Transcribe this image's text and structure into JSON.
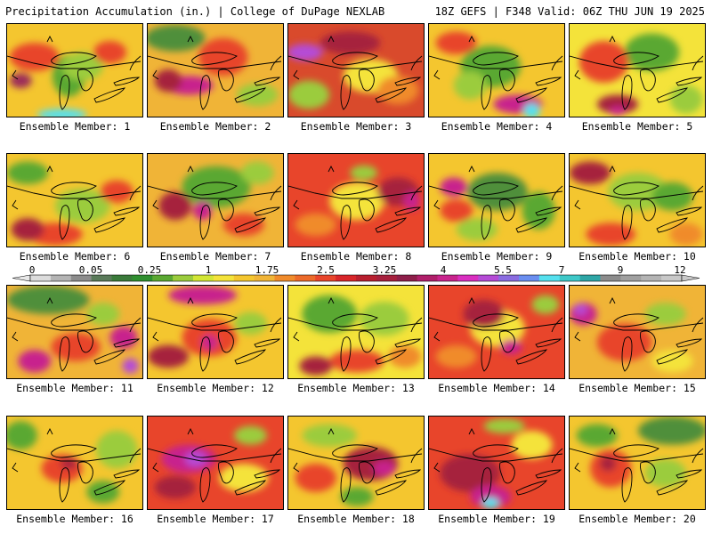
{
  "header": {
    "title": "Precipitation Accumulation (in.) | College of DuPage NEXLAB",
    "run_info": "18Z GEFS | F348 Valid: 06Z THU JUN 19 2025"
  },
  "label_prefix": "Ensemble Member: ",
  "members": [
    {
      "num": 1,
      "label": "Ensemble Member: 1",
      "base": "#f4c62f",
      "blobs": [
        [
          "#5aa832",
          0.45,
          0.55,
          0.12,
          0.22
        ],
        [
          "#9bcc3d",
          0.55,
          0.45,
          0.15,
          0.15
        ],
        [
          "#e8452b",
          0.2,
          0.35,
          0.18,
          0.15
        ],
        [
          "#e8452b",
          0.75,
          0.3,
          0.12,
          0.12
        ],
        [
          "#55e0ee",
          0.4,
          0.96,
          0.18,
          0.06
        ],
        [
          "#9b2a5a",
          0.1,
          0.6,
          0.08,
          0.08
        ]
      ]
    },
    {
      "num": 2,
      "label": "Ensemble Member: 2",
      "base": "#f0b437",
      "blobs": [
        [
          "#4f8f3a",
          0.2,
          0.15,
          0.22,
          0.14
        ],
        [
          "#c8248d",
          0.3,
          0.65,
          0.18,
          0.1
        ],
        [
          "#e8452b",
          0.55,
          0.35,
          0.18,
          0.2
        ],
        [
          "#9bcc3d",
          0.8,
          0.75,
          0.15,
          0.12
        ],
        [
          "#a6203d",
          0.15,
          0.6,
          0.1,
          0.12
        ]
      ]
    },
    {
      "num": 3,
      "label": "Ensemble Member: 3",
      "base": "#d94a2c",
      "blobs": [
        [
          "#b54bd6",
          0.12,
          0.3,
          0.13,
          0.09
        ],
        [
          "#f4e33a",
          0.6,
          0.55,
          0.2,
          0.18
        ],
        [
          "#9bcc3d",
          0.15,
          0.75,
          0.15,
          0.15
        ],
        [
          "#a6203d",
          0.45,
          0.2,
          0.22,
          0.12
        ],
        [
          "#f08b2b",
          0.8,
          0.7,
          0.15,
          0.15
        ]
      ]
    },
    {
      "num": 4,
      "label": "Ensemble Member: 4",
      "base": "#f4c62f",
      "blobs": [
        [
          "#5aa832",
          0.45,
          0.45,
          0.22,
          0.22
        ],
        [
          "#c8248d",
          0.65,
          0.85,
          0.18,
          0.1
        ],
        [
          "#55e0ee",
          0.75,
          0.92,
          0.06,
          0.08
        ],
        [
          "#e8452b",
          0.2,
          0.2,
          0.15,
          0.12
        ],
        [
          "#9bcc3d",
          0.3,
          0.65,
          0.12,
          0.15
        ]
      ]
    },
    {
      "num": 5,
      "label": "Ensemble Member: 5",
      "base": "#f4e33a",
      "blobs": [
        [
          "#5aa832",
          0.6,
          0.3,
          0.2,
          0.2
        ],
        [
          "#e8452b",
          0.25,
          0.4,
          0.18,
          0.22
        ],
        [
          "#9bcc3d",
          0.85,
          0.8,
          0.12,
          0.15
        ],
        [
          "#a6203d",
          0.35,
          0.85,
          0.15,
          0.1
        ],
        [
          "#c8248d",
          0.35,
          0.92,
          0.06,
          0.05
        ]
      ]
    },
    {
      "num": 6,
      "label": "Ensemble Member: 6",
      "base": "#f4c62f",
      "blobs": [
        [
          "#5aa832",
          0.15,
          0.2,
          0.15,
          0.12
        ],
        [
          "#9bcc3d",
          0.55,
          0.55,
          0.2,
          0.18
        ],
        [
          "#e8452b",
          0.35,
          0.85,
          0.2,
          0.12
        ],
        [
          "#a6203d",
          0.15,
          0.8,
          0.12,
          0.12
        ],
        [
          "#e8452b",
          0.8,
          0.4,
          0.12,
          0.12
        ]
      ]
    },
    {
      "num": 7,
      "label": "Ensemble Member: 7",
      "base": "#f0b437",
      "blobs": [
        [
          "#5aa832",
          0.5,
          0.35,
          0.25,
          0.22
        ],
        [
          "#c8248d",
          0.4,
          0.6,
          0.07,
          0.1
        ],
        [
          "#a6203d",
          0.2,
          0.55,
          0.12,
          0.15
        ],
        [
          "#9bcc3d",
          0.8,
          0.2,
          0.12,
          0.12
        ],
        [
          "#e8452b",
          0.7,
          0.75,
          0.15,
          0.12
        ]
      ]
    },
    {
      "num": 8,
      "label": "Ensemble Member: 8",
      "base": "#e8452b",
      "blobs": [
        [
          "#f4e33a",
          0.5,
          0.5,
          0.2,
          0.2
        ],
        [
          "#a6203d",
          0.8,
          0.4,
          0.15,
          0.15
        ],
        [
          "#c8248d",
          0.9,
          0.5,
          0.06,
          0.1
        ],
        [
          "#9bcc3d",
          0.55,
          0.2,
          0.1,
          0.08
        ],
        [
          "#f08b2b",
          0.2,
          0.75,
          0.15,
          0.12
        ]
      ]
    },
    {
      "num": 9,
      "label": "Ensemble Member: 9",
      "base": "#f4c62f",
      "blobs": [
        [
          "#4f8f3a",
          0.5,
          0.4,
          0.22,
          0.2
        ],
        [
          "#5aa832",
          0.8,
          0.6,
          0.12,
          0.2
        ],
        [
          "#c8248d",
          0.18,
          0.35,
          0.1,
          0.1
        ],
        [
          "#e8452b",
          0.2,
          0.6,
          0.12,
          0.12
        ],
        [
          "#9bcc3d",
          0.35,
          0.8,
          0.15,
          0.12
        ]
      ]
    },
    {
      "num": 10,
      "label": "Ensemble Member: 10",
      "base": "#f4c62f",
      "blobs": [
        [
          "#9bcc3d",
          0.5,
          0.4,
          0.22,
          0.2
        ],
        [
          "#a6203d",
          0.15,
          0.2,
          0.15,
          0.12
        ],
        [
          "#e8452b",
          0.3,
          0.85,
          0.18,
          0.12
        ],
        [
          "#5aa832",
          0.75,
          0.45,
          0.15,
          0.15
        ],
        [
          "#f08b2b",
          0.85,
          0.85,
          0.12,
          0.12
        ]
      ]
    },
    {
      "num": 11,
      "label": "Ensemble Member: 11",
      "base": "#f0b437",
      "blobs": [
        [
          "#4f8f3a",
          0.3,
          0.15,
          0.3,
          0.15
        ],
        [
          "#c8248d",
          0.2,
          0.8,
          0.12,
          0.12
        ],
        [
          "#c8248d",
          0.85,
          0.55,
          0.1,
          0.12
        ],
        [
          "#e8452b",
          0.5,
          0.65,
          0.18,
          0.15
        ],
        [
          "#9bcc3d",
          0.7,
          0.3,
          0.12,
          0.12
        ],
        [
          "#b54bd6",
          0.9,
          0.85,
          0.06,
          0.08
        ]
      ]
    },
    {
      "num": 12,
      "label": "Ensemble Member: 12",
      "base": "#f4c62f",
      "blobs": [
        [
          "#c8248d",
          0.4,
          0.1,
          0.25,
          0.1
        ],
        [
          "#e8452b",
          0.45,
          0.55,
          0.2,
          0.2
        ],
        [
          "#c8248d",
          0.45,
          0.6,
          0.06,
          0.08
        ],
        [
          "#9bcc3d",
          0.75,
          0.4,
          0.12,
          0.12
        ],
        [
          "#a6203d",
          0.15,
          0.75,
          0.15,
          0.12
        ]
      ]
    },
    {
      "num": 13,
      "label": "Ensemble Member: 13",
      "base": "#f4e33a",
      "blobs": [
        [
          "#5aa832",
          0.3,
          0.3,
          0.2,
          0.2
        ],
        [
          "#9bcc3d",
          0.7,
          0.35,
          0.18,
          0.18
        ],
        [
          "#e8452b",
          0.5,
          0.8,
          0.2,
          0.12
        ],
        [
          "#a6203d",
          0.2,
          0.85,
          0.12,
          0.1
        ],
        [
          "#f08b2b",
          0.85,
          0.75,
          0.12,
          0.12
        ]
      ]
    },
    {
      "num": 14,
      "label": "Ensemble Member: 14",
      "base": "#e8452b",
      "blobs": [
        [
          "#f4e33a",
          0.5,
          0.45,
          0.2,
          0.2
        ],
        [
          "#a6203d",
          0.4,
          0.3,
          0.15,
          0.15
        ],
        [
          "#9bcc3d",
          0.85,
          0.2,
          0.1,
          0.1
        ],
        [
          "#f08b2b",
          0.2,
          0.75,
          0.15,
          0.12
        ],
        [
          "#c8248d",
          0.6,
          0.65,
          0.08,
          0.08
        ]
      ]
    },
    {
      "num": 15,
      "label": "Ensemble Member: 15",
      "base": "#f0b437",
      "blobs": [
        [
          "#c8248d",
          0.1,
          0.3,
          0.1,
          0.12
        ],
        [
          "#b54bd6",
          0.08,
          0.25,
          0.05,
          0.06
        ],
        [
          "#e8452b",
          0.4,
          0.6,
          0.2,
          0.2
        ],
        [
          "#9bcc3d",
          0.7,
          0.3,
          0.15,
          0.12
        ],
        [
          "#f4e33a",
          0.75,
          0.8,
          0.15,
          0.12
        ]
      ]
    },
    {
      "num": 16,
      "label": "Ensemble Member: 16",
      "base": "#f4c62f",
      "blobs": [
        [
          "#5aa832",
          0.1,
          0.2,
          0.12,
          0.15
        ],
        [
          "#9bcc3d",
          0.8,
          0.35,
          0.15,
          0.2
        ],
        [
          "#e8452b",
          0.4,
          0.55,
          0.15,
          0.15
        ],
        [
          "#a6203d",
          0.45,
          0.5,
          0.06,
          0.06
        ],
        [
          "#5aa832",
          0.7,
          0.8,
          0.12,
          0.12
        ]
      ]
    },
    {
      "num": 17,
      "label": "Ensemble Member: 17",
      "base": "#e8452b",
      "blobs": [
        [
          "#c8248d",
          0.3,
          0.45,
          0.2,
          0.15
        ],
        [
          "#b54bd6",
          0.35,
          0.45,
          0.08,
          0.08
        ],
        [
          "#f4e33a",
          0.7,
          0.65,
          0.18,
          0.15
        ],
        [
          "#9bcc3d",
          0.75,
          0.2,
          0.12,
          0.1
        ],
        [
          "#a6203d",
          0.2,
          0.75,
          0.15,
          0.12
        ]
      ]
    },
    {
      "num": 18,
      "label": "Ensemble Member: 18",
      "base": "#f4c62f",
      "blobs": [
        [
          "#9bcc3d",
          0.3,
          0.2,
          0.2,
          0.12
        ],
        [
          "#a6203d",
          0.6,
          0.5,
          0.2,
          0.18
        ],
        [
          "#c8248d",
          0.7,
          0.55,
          0.08,
          0.08
        ],
        [
          "#e8452b",
          0.2,
          0.65,
          0.15,
          0.15
        ],
        [
          "#5aa832",
          0.5,
          0.85,
          0.12,
          0.1
        ]
      ]
    },
    {
      "num": 19,
      "label": "Ensemble Member: 19",
      "base": "#e8452b",
      "blobs": [
        [
          "#a6203d",
          0.3,
          0.6,
          0.22,
          0.2
        ],
        [
          "#c8248d",
          0.45,
          0.85,
          0.15,
          0.12
        ],
        [
          "#55e0ee",
          0.45,
          0.92,
          0.06,
          0.06
        ],
        [
          "#f4e33a",
          0.75,
          0.3,
          0.15,
          0.15
        ],
        [
          "#9bcc3d",
          0.55,
          0.1,
          0.15,
          0.08
        ]
      ]
    },
    {
      "num": 20,
      "label": "Ensemble Member: 20",
      "base": "#f4c62f",
      "blobs": [
        [
          "#4f8f3a",
          0.75,
          0.15,
          0.25,
          0.15
        ],
        [
          "#5aa832",
          0.2,
          0.2,
          0.15,
          0.12
        ],
        [
          "#e8452b",
          0.3,
          0.55,
          0.15,
          0.2
        ],
        [
          "#a6203d",
          0.28,
          0.5,
          0.06,
          0.08
        ],
        [
          "#9bcc3d",
          0.7,
          0.6,
          0.15,
          0.15
        ]
      ]
    }
  ],
  "colorbar": {
    "colors": [
      "#dcdcdc",
      "#b4b4b4",
      "#8c8c8c",
      "#5a7a5a",
      "#3a7a3a",
      "#2f8f2f",
      "#5aa832",
      "#9bcc3d",
      "#d2e635",
      "#f4e33a",
      "#f4c62f",
      "#f0b437",
      "#f08b2b",
      "#ec6a2a",
      "#e8452b",
      "#d8262a",
      "#b81f2f",
      "#a6203d",
      "#8e1f4a",
      "#b01f6a",
      "#c8248d",
      "#d92fc0",
      "#b54bd6",
      "#8a6ce0",
      "#6a8ef0",
      "#55e0ee",
      "#3ec8c8",
      "#2ea6a6",
      "#8c8c8c",
      "#a0a0a0",
      "#b4b4b4",
      "#c8c8c8"
    ],
    "tick_labels": [
      "0",
      "0.05",
      "0.25",
      "1",
      "1.75",
      "2.5",
      "3.25",
      "4",
      "5.5",
      "7",
      "9",
      "12"
    ]
  }
}
